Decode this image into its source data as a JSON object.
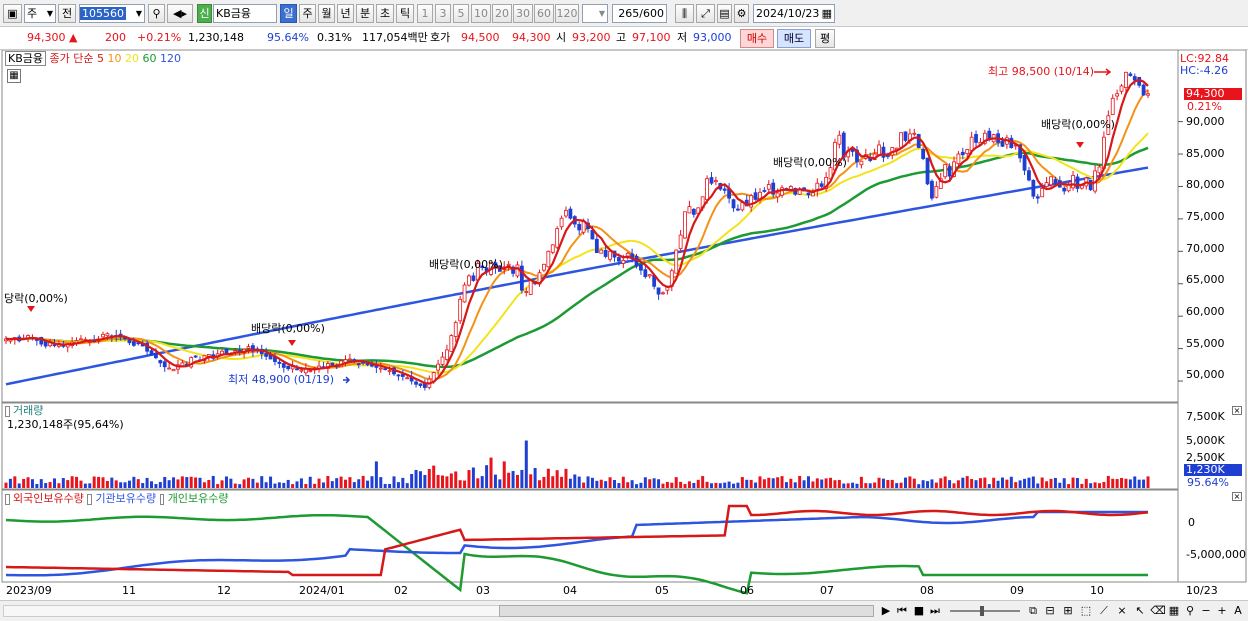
{
  "toolbar": {
    "type_sel": "주",
    "prev_btn": "전",
    "code": "105560",
    "shin": "신",
    "stock_name": "KB금융",
    "periods": [
      "일",
      "주",
      "월",
      "년",
      "분",
      "초",
      "틱"
    ],
    "nums": [
      "1",
      "3",
      "5",
      "10",
      "20",
      "30",
      "60",
      "120"
    ],
    "count": "265",
    "count_total": "/600",
    "date": "2024/10/23"
  },
  "quote": {
    "price": "94,300",
    "change": "200",
    "change_pct": "+0.21%",
    "volume": "1,230,148",
    "vol_ratio": "95.64%",
    "turnover": "0.31%",
    "amount": "117,054백만",
    "hoga_label": "호가",
    "ask": "94,500",
    "bid": "94,300",
    "open_label": "시",
    "open": "93,200",
    "high_label": "고",
    "high": "97,100",
    "low_label": "저",
    "low": "93,000",
    "buy": "매수",
    "sell": "매도",
    "eval": "평"
  },
  "legend": {
    "name": "KB금융",
    "label": "종가 단순",
    "mas": [
      "5",
      "10",
      "20",
      "60",
      "120"
    ]
  },
  "annotations": {
    "div1": "당락(0,00%)",
    "div2": "배당락(0,00%)",
    "div3": "배당락(0,00%)",
    "div4": "배당락(0,00%)",
    "div5": "배당락(0,00%)",
    "low": "최저 48,900 (01/19)",
    "high": "최고 98,500 (10/14)"
  },
  "price_axis": {
    "ticks": [
      "90,000",
      "85,000",
      "80,000",
      "75,000",
      "70,000",
      "65,000",
      "60,000",
      "55,000",
      "50,000"
    ],
    "lc": "LC:92.84",
    "hc": "HC:-4.26",
    "current": "94,300",
    "current_pct": "0.21%"
  },
  "volume_panel": {
    "title": "거래량",
    "value": "1,230,148주(95,64%)",
    "ticks": [
      "7,500K",
      "5,000K",
      "2,500K"
    ],
    "current": "1,230K",
    "current_pct": "95.64%"
  },
  "holders_panel": {
    "items": [
      "외국인보유수량",
      "기관보유수량",
      "개인보유수량"
    ],
    "ticks": [
      "0",
      "-5,000,000"
    ]
  },
  "x_axis": [
    "2023/09",
    "11",
    "12",
    "2024/01",
    "02",
    "03",
    "04",
    "05",
    "06",
    "07",
    "08",
    "09",
    "10",
    "10/23"
  ],
  "colors": {
    "up": "#e8141b",
    "down": "#1f3fd3",
    "ma5": "#d61818",
    "ma10": "#f39214",
    "ma20": "#f2e31b",
    "ma60": "#1d9a32",
    "ma120": "#2d55e0"
  },
  "chart_data": {
    "type": "candlestick",
    "y_range": [
      48000,
      99500
    ],
    "closes": [
      56500,
      56400,
      56700,
      56200,
      56600,
      57000,
      56700,
      56300,
      55700,
      55400,
      55900,
      55600,
      55800,
      55400,
      55700,
      56000,
      56200,
      56500,
      56400,
      56100,
      56200,
      56500,
      57200,
      57300,
      56700,
      56900,
      56800,
      56500,
      55900,
      55500,
      55800,
      55400,
      54600,
      54000,
      53600,
      52800,
      52200,
      52000,
      51800,
      52500,
      52800,
      52300,
      53600,
      53700,
      53200,
      53900,
      54100,
      53500,
      54200,
      54600,
      54300,
      54200,
      54700,
      54400,
      54900,
      55300,
      54600,
      54700,
      54200,
      53800,
      53400,
      53000,
      52700,
      52100,
      51900,
      52200,
      51800,
      51700,
      51900,
      51600,
      52000,
      52300,
      52100,
      52700,
      52500,
      52200,
      53100,
      53300,
      53400,
      53100,
      52600,
      52900,
      52500,
      52300,
      52100,
      52000,
      51800,
      51600,
      51100,
      50900,
      50700,
      50500,
      50000,
      49500,
      49300,
      49000,
      50300,
      51300,
      52600,
      53700,
      54800,
      57000,
      59000,
      62600,
      64800,
      66200,
      65500,
      68100,
      67500,
      66800,
      68300,
      67400,
      66900,
      67600,
      68000,
      66600,
      67900,
      64000,
      63800,
      65500,
      65000,
      66700,
      68000,
      70000,
      71000,
      73500,
      75100,
      76300,
      75100,
      74200,
      73300,
      74600,
      73500,
      71900,
      69800,
      70200,
      69200,
      70000,
      69100,
      68500,
      68600,
      69700,
      68900,
      67700,
      67100,
      66100,
      66400,
      64600,
      63400,
      63600,
      64500,
      67000,
      70200,
      72500,
      76100,
      76900,
      75700,
      76700,
      78400,
      81200,
      80500,
      80900,
      79600,
      79400,
      78200,
      76700,
      76500,
      77500,
      77000,
      78600,
      78000,
      79100,
      79300,
      80300,
      78800,
      79000,
      79800,
      79600,
      80000,
      78800,
      79600,
      79300,
      78700,
      79200,
      80500,
      80000,
      81400,
      82900,
      86800,
      87900,
      84500,
      85500,
      85400,
      83800,
      83900,
      84900,
      84000,
      85000,
      86400,
      84500,
      84700,
      86000,
      85900,
      88300,
      87100,
      88100,
      88200,
      86000,
      84300,
      80400,
      78200,
      80000,
      81200,
      83400,
      81600,
      83800,
      85000,
      84900,
      85700,
      87600,
      86800,
      86800,
      88200,
      87200,
      88000,
      86800,
      86200,
      87500,
      86000,
      86400,
      84400,
      82500,
      81000,
      78500,
      78200,
      79700,
      80600,
      81500,
      80500,
      79900,
      79300,
      80200,
      81700,
      79700,
      80200,
      81300,
      79500,
      82400,
      83000,
      87600,
      90900,
      93600,
      94300,
      95500,
      97600,
      97100,
      96400,
      95600,
      94100,
      94300
    ],
    "ma_last": {
      "ma5": 94300,
      "ma10": 93300,
      "ma20": 88600,
      "ma60": 85900,
      "ma120": 82800
    },
    "volume_last": "1,230K"
  }
}
